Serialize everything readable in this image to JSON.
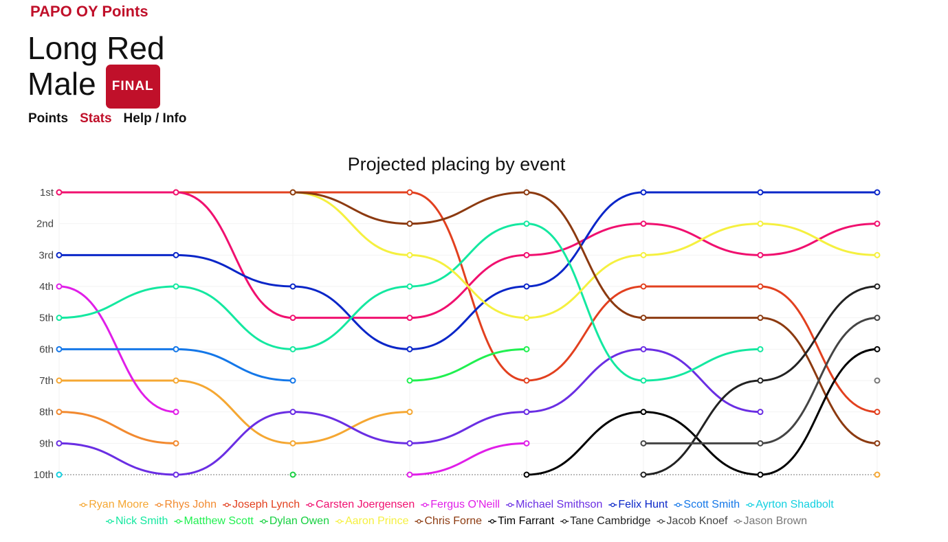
{
  "header": {
    "logo": "PAPO OY Points",
    "title_line1": "Long Red",
    "title_line2": "Male",
    "badge": "FINAL"
  },
  "nav": [
    "Points",
    "Stats",
    "Help / Info"
  ],
  "chart_data": {
    "type": "line",
    "title": "Projected placing by event",
    "categories": [
      null,
      null,
      null,
      null,
      null,
      null,
      null,
      null
    ],
    "ylim": [
      10,
      1
    ],
    "reversed": true,
    "grid": true,
    "yticks": [
      {
        "value": 1,
        "label": "1st"
      },
      {
        "value": 2,
        "label": "2nd"
      },
      {
        "value": 3,
        "label": "3rd"
      },
      {
        "value": 4,
        "label": "4th"
      },
      {
        "value": 5,
        "label": "5th"
      },
      {
        "value": 6,
        "label": "6th"
      },
      {
        "value": 7,
        "label": "7th"
      },
      {
        "value": 8,
        "label": "8th"
      },
      {
        "value": 9,
        "label": "9th"
      },
      {
        "value": 10,
        "label": "10th"
      }
    ],
    "series": [
      {
        "name": "Ryan Moore",
        "color": "#f5a732",
        "values": [
          7,
          7,
          9,
          8,
          null,
          null,
          null,
          10
        ]
      },
      {
        "name": "Rhys John",
        "color": "#f28a30",
        "values": [
          8,
          9,
          null,
          null,
          null,
          null,
          null,
          null
        ]
      },
      {
        "name": "Joseph Lynch",
        "color": "#e2401f",
        "values": [
          1,
          1,
          1,
          1,
          7,
          4,
          4,
          8
        ]
      },
      {
        "name": "Carsten Joergensen",
        "color": "#f0106f",
        "values": [
          1,
          1,
          5,
          5,
          3,
          2,
          3,
          2
        ]
      },
      {
        "name": "Fergus O'Neill",
        "color": "#e01ee8",
        "values": [
          4,
          8,
          null,
          10,
          9,
          null,
          null,
          null
        ]
      },
      {
        "name": "Michael Smithson",
        "color": "#6a2ee3",
        "values": [
          9,
          10,
          8,
          9,
          8,
          6,
          8,
          null
        ]
      },
      {
        "name": "Felix Hunt",
        "color": "#0a26c8",
        "values": [
          3,
          3,
          4,
          6,
          4,
          1,
          1,
          1
        ]
      },
      {
        "name": "Scott Smith",
        "color": "#1477e8",
        "values": [
          6,
          6,
          7,
          null,
          null,
          null,
          null,
          null
        ]
      },
      {
        "name": "Ayrton Shadbolt",
        "color": "#12d0e0",
        "values": [
          10,
          null,
          null,
          null,
          null,
          null,
          null,
          null
        ]
      },
      {
        "name": "Nick Smith",
        "color": "#14e8a0",
        "values": [
          5,
          4,
          6,
          4,
          2,
          7,
          6,
          null
        ]
      },
      {
        "name": "Matthew Scott",
        "color": "#20f050",
        "values": [
          null,
          null,
          null,
          7,
          6,
          null,
          null,
          null
        ]
      },
      {
        "name": "Dylan Owen",
        "color": "#16d040",
        "values": [
          null,
          null,
          10,
          null,
          null,
          null,
          null,
          null
        ]
      },
      {
        "name": "Aaron Prince",
        "color": "#f5f040",
        "values": [
          null,
          null,
          1,
          3,
          5,
          3,
          2,
          3
        ]
      },
      {
        "name": "Chris Forne",
        "color": "#8c3a10",
        "values": [
          null,
          null,
          1,
          2,
          1,
          5,
          5,
          9
        ]
      },
      {
        "name": "Tim Farrant",
        "color": "#000000",
        "values": [
          null,
          null,
          null,
          null,
          10,
          8,
          10,
          6
        ]
      },
      {
        "name": "Tane Cambridge",
        "color": "#222222",
        "values": [
          null,
          null,
          null,
          null,
          null,
          10,
          7,
          4
        ]
      },
      {
        "name": "Jacob Knoef",
        "color": "#444444",
        "values": [
          null,
          null,
          null,
          null,
          null,
          9,
          9,
          5
        ]
      },
      {
        "name": "Jason Brown",
        "color": "#777777",
        "values": [
          null,
          null,
          null,
          null,
          null,
          null,
          null,
          7
        ]
      }
    ]
  }
}
